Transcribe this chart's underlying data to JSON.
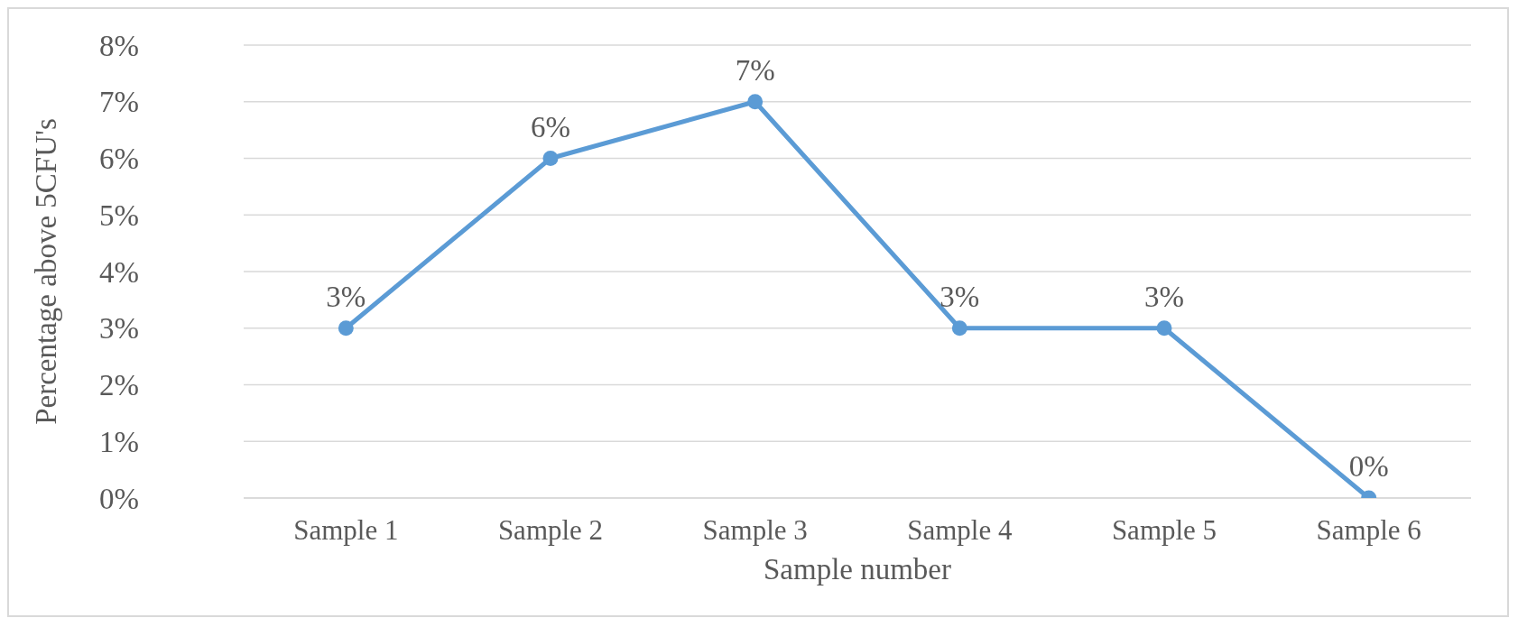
{
  "chart_data": {
    "type": "line",
    "xlabel": "Sample number",
    "ylabel": "Percentage above 5CFU's",
    "categories": [
      "Sample 1",
      "Sample 2",
      "Sample 3",
      "Sample 4",
      "Sample 5",
      "Sample 6"
    ],
    "series": [
      {
        "color": "#5b9bd5",
        "values": [
          3,
          6,
          7,
          3,
          3,
          0
        ],
        "value_labels": [
          "3%",
          "6%",
          "7%",
          "3%",
          "3%",
          "0%"
        ]
      }
    ],
    "ylim": [
      0,
      8
    ],
    "yticks": [
      {
        "value": 0,
        "label": "0%"
      },
      {
        "value": 1,
        "label": "1%"
      },
      {
        "value": 2,
        "label": "2%"
      },
      {
        "value": 3,
        "label": "3%"
      },
      {
        "value": 4,
        "label": "4%"
      },
      {
        "value": 5,
        "label": "5%"
      },
      {
        "value": 6,
        "label": "6%"
      },
      {
        "value": 7,
        "label": "7%"
      },
      {
        "value": 8,
        "label": "8%"
      }
    ],
    "grid": "y",
    "marker": "circle",
    "line_style": "solid"
  }
}
